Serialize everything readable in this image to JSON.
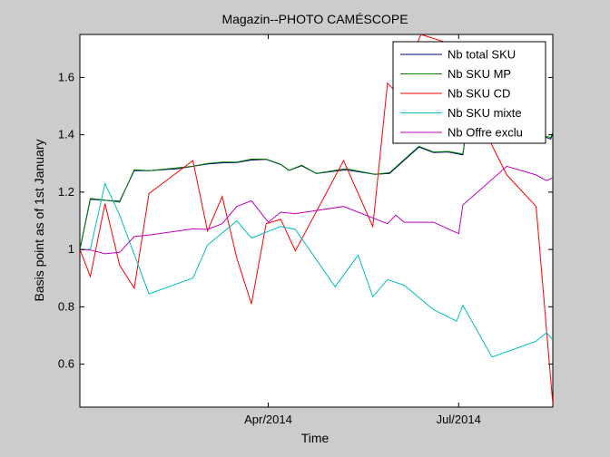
{
  "chart_data": {
    "type": "line",
    "title": "Magazin--PHOTO CAMÉSCOPE",
    "xlabel": "Time",
    "ylabel": "Basis point as of 1st January",
    "xlim": [
      "2014-01-01",
      "2014-08-15"
    ],
    "ylim": [
      0.45,
      1.75
    ],
    "x_ticks": [
      {
        "date": "2014-04-01",
        "label": "Apr/2014"
      },
      {
        "date": "2014-07-01",
        "label": "Jul/2014"
      }
    ],
    "y_ticks": [
      0.6,
      0.8,
      1.0,
      1.2,
      1.4,
      1.6
    ],
    "grid": false,
    "legend_position": "top-right",
    "series": [
      {
        "name": "Nb total SKU",
        "color": "#00007f",
        "points": [
          [
            "2014-01-01",
            1.0
          ],
          [
            "2014-01-06",
            1.175
          ],
          [
            "2014-01-20",
            1.168
          ],
          [
            "2014-01-27",
            1.275
          ],
          [
            "2014-02-03",
            1.275
          ],
          [
            "2014-02-17",
            1.282
          ],
          [
            "2014-02-24",
            1.29
          ],
          [
            "2014-03-03",
            1.298
          ],
          [
            "2014-03-10",
            1.302
          ],
          [
            "2014-03-17",
            1.303
          ],
          [
            "2014-03-24",
            1.312
          ],
          [
            "2014-03-31",
            1.314
          ],
          [
            "2014-04-07",
            1.296
          ],
          [
            "2014-04-11",
            1.276
          ],
          [
            "2014-04-17",
            1.292
          ],
          [
            "2014-04-24",
            1.265
          ],
          [
            "2014-05-08",
            1.278
          ],
          [
            "2014-05-22",
            1.262
          ],
          [
            "2014-05-29",
            1.265
          ],
          [
            "2014-06-12",
            1.357
          ],
          [
            "2014-06-19",
            1.338
          ],
          [
            "2014-06-26",
            1.34
          ],
          [
            "2014-07-03",
            1.33
          ],
          [
            "2014-07-06",
            1.49
          ],
          [
            "2014-08-14",
            1.385
          ],
          [
            "2014-08-15",
            1.405
          ]
        ]
      },
      {
        "name": "Nb SKU MP",
        "color": "#007f00",
        "points": [
          [
            "2014-01-01",
            1.0
          ],
          [
            "2014-01-06",
            1.178
          ],
          [
            "2014-01-20",
            1.165
          ],
          [
            "2014-01-27",
            1.278
          ],
          [
            "2014-02-03",
            1.275
          ],
          [
            "2014-02-17",
            1.285
          ],
          [
            "2014-02-24",
            1.29
          ],
          [
            "2014-03-03",
            1.3
          ],
          [
            "2014-03-10",
            1.305
          ],
          [
            "2014-03-17",
            1.305
          ],
          [
            "2014-03-24",
            1.315
          ],
          [
            "2014-03-31",
            1.315
          ],
          [
            "2014-04-07",
            1.297
          ],
          [
            "2014-04-11",
            1.276
          ],
          [
            "2014-04-17",
            1.294
          ],
          [
            "2014-04-24",
            1.265
          ],
          [
            "2014-05-08",
            1.282
          ],
          [
            "2014-05-22",
            1.262
          ],
          [
            "2014-05-29",
            1.268
          ],
          [
            "2014-06-12",
            1.36
          ],
          [
            "2014-06-19",
            1.34
          ],
          [
            "2014-06-26",
            1.342
          ],
          [
            "2014-07-03",
            1.333
          ],
          [
            "2014-07-06",
            1.49
          ],
          [
            "2014-08-14",
            1.39
          ],
          [
            "2014-08-15",
            1.41
          ]
        ]
      },
      {
        "name": "Nb SKU CD",
        "color": "#ff0000",
        "points": [
          [
            "2014-01-01",
            1.0
          ],
          [
            "2014-01-06",
            0.905
          ],
          [
            "2014-01-13",
            1.16
          ],
          [
            "2014-01-20",
            0.945
          ],
          [
            "2014-01-27",
            0.865
          ],
          [
            "2014-02-03",
            1.195
          ],
          [
            "2014-02-24",
            1.31
          ],
          [
            "2014-03-03",
            1.065
          ],
          [
            "2014-03-10",
            1.185
          ],
          [
            "2014-03-17",
            0.97
          ],
          [
            "2014-03-24",
            0.81
          ],
          [
            "2014-03-31",
            1.09
          ],
          [
            "2014-04-07",
            1.105
          ],
          [
            "2014-04-14",
            0.995
          ],
          [
            "2014-05-07",
            1.31
          ],
          [
            "2014-05-21",
            1.08
          ],
          [
            "2014-05-28",
            1.58
          ],
          [
            "2014-06-01",
            1.55
          ],
          [
            "2014-06-13",
            1.75
          ],
          [
            "2014-06-26",
            1.72
          ],
          [
            "2014-07-03",
            1.6
          ],
          [
            "2014-07-13",
            1.42
          ],
          [
            "2014-07-24",
            1.26
          ],
          [
            "2014-08-07",
            1.15
          ],
          [
            "2014-08-15",
            0.46
          ]
        ]
      },
      {
        "name": "Nb SKU mixte",
        "color": "#00bfbf",
        "points": [
          [
            "2014-01-01",
            1.0
          ],
          [
            "2014-01-06",
            1.0
          ],
          [
            "2014-01-13",
            1.23
          ],
          [
            "2014-01-20",
            1.12
          ],
          [
            "2014-02-03",
            0.845
          ],
          [
            "2014-02-24",
            0.9
          ],
          [
            "2014-03-03",
            1.015
          ],
          [
            "2014-03-17",
            1.1
          ],
          [
            "2014-03-24",
            1.04
          ],
          [
            "2014-04-07",
            1.08
          ],
          [
            "2014-04-14",
            1.07
          ],
          [
            "2014-05-03",
            0.87
          ],
          [
            "2014-05-14",
            0.98
          ],
          [
            "2014-05-21",
            0.835
          ],
          [
            "2014-05-28",
            0.895
          ],
          [
            "2014-06-05",
            0.875
          ],
          [
            "2014-06-19",
            0.79
          ],
          [
            "2014-06-30",
            0.75
          ],
          [
            "2014-07-03",
            0.805
          ],
          [
            "2014-07-17",
            0.625
          ],
          [
            "2014-08-07",
            0.68
          ],
          [
            "2014-08-12",
            0.71
          ],
          [
            "2014-08-15",
            0.685
          ]
        ]
      },
      {
        "name": "Nb Offre exclu",
        "color": "#bf00bf",
        "points": [
          [
            "2014-01-01",
            1.0
          ],
          [
            "2014-01-06",
            0.998
          ],
          [
            "2014-01-13",
            0.985
          ],
          [
            "2014-01-20",
            0.99
          ],
          [
            "2014-01-27",
            1.045
          ],
          [
            "2014-02-03",
            1.05
          ],
          [
            "2014-02-24",
            1.072
          ],
          [
            "2014-03-03",
            1.07
          ],
          [
            "2014-03-10",
            1.09
          ],
          [
            "2014-03-17",
            1.15
          ],
          [
            "2014-03-24",
            1.17
          ],
          [
            "2014-04-01",
            1.095
          ],
          [
            "2014-04-07",
            1.13
          ],
          [
            "2014-04-14",
            1.125
          ],
          [
            "2014-05-07",
            1.15
          ],
          [
            "2014-05-28",
            1.09
          ],
          [
            "2014-06-01",
            1.12
          ],
          [
            "2014-06-05",
            1.095
          ],
          [
            "2014-06-19",
            1.095
          ],
          [
            "2014-07-01",
            1.055
          ],
          [
            "2014-07-03",
            1.155
          ],
          [
            "2014-07-24",
            1.29
          ],
          [
            "2014-08-07",
            1.26
          ],
          [
            "2014-08-12",
            1.24
          ],
          [
            "2014-08-15",
            1.25
          ]
        ]
      }
    ]
  }
}
